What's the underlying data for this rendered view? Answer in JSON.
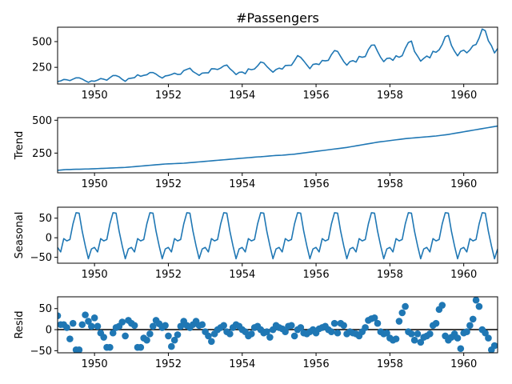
{
  "chart_data": {
    "type": "line",
    "title": "#Passengers",
    "colors": {
      "series": "#1f77b4",
      "axis": "#000000",
      "zero_line": "#000000"
    },
    "x_range": [
      1949.0,
      1960.917
    ],
    "x_ticks": [
      1950,
      1952,
      1954,
      1956,
      1958,
      1960
    ],
    "x_tick_labels": [
      "1950",
      "1952",
      "1954",
      "1956",
      "1958",
      "1960"
    ],
    "panels": [
      {
        "id": "observed",
        "ylabel": "",
        "kind": "line",
        "ylim": [
          88,
          640
        ],
        "yticks": [
          250,
          500
        ],
        "ytick_labels": [
          "250",
          "500"
        ],
        "start_year": 1949,
        "freq": 12,
        "values": [
          112,
          118,
          132,
          129,
          121,
          135,
          148,
          148,
          136,
          119,
          104,
          118,
          115,
          126,
          141,
          135,
          125,
          149,
          170,
          170,
          158,
          133,
          114,
          140,
          145,
          150,
          178,
          163,
          172,
          178,
          199,
          199,
          184,
          162,
          146,
          166,
          171,
          180,
          193,
          181,
          183,
          218,
          230,
          242,
          209,
          191,
          172,
          194,
          196,
          196,
          236,
          235,
          229,
          243,
          264,
          272,
          237,
          211,
          180,
          201,
          204,
          188,
          235,
          227,
          234,
          264,
          302,
          293,
          259,
          229,
          203,
          229,
          242,
          233,
          267,
          269,
          270,
          315,
          364,
          347,
          312,
          274,
          237,
          278,
          284,
          277,
          317,
          313,
          318,
          374,
          413,
          405,
          355,
          306,
          271,
          306,
          315,
          301,
          356,
          348,
          355,
          422,
          465,
          467,
          404,
          347,
          305,
          336,
          340,
          318,
          362,
          348,
          363,
          435,
          491,
          505,
          404,
          359,
          310,
          337,
          360,
          342,
          406,
          396,
          420,
          472,
          548,
          559,
          463,
          407,
          362,
          405,
          417,
          391,
          419,
          461,
          472,
          535,
          622,
          606,
          508,
          461,
          390,
          432
        ]
      },
      {
        "id": "trend",
        "ylabel": "Trend",
        "kind": "line",
        "ylim": [
          100,
          520
        ],
        "yticks": [
          250,
          500
        ],
        "ytick_labels": [
          "250",
          "500"
        ],
        "start_year": 1949,
        "freq": 12,
        "values": [
          119,
          121,
          123,
          125,
          125,
          126,
          127,
          127,
          128,
          129,
          129,
          130,
          131,
          132,
          133,
          134,
          135,
          136,
          137,
          138,
          139,
          140,
          141,
          143,
          145,
          147,
          149,
          151,
          153,
          155,
          157,
          159,
          161,
          163,
          165,
          167,
          168,
          169,
          170,
          171,
          172,
          173,
          175,
          177,
          179,
          181,
          183,
          185,
          187,
          189,
          191,
          193,
          195,
          197,
          199,
          201,
          203,
          205,
          207,
          209,
          211,
          213,
          215,
          217,
          219,
          221,
          222,
          224,
          226,
          228,
          230,
          232,
          233,
          234,
          236,
          238,
          240,
          242,
          245,
          248,
          251,
          254,
          257,
          260,
          263,
          266,
          269,
          272,
          275,
          278,
          281,
          284,
          287,
          290,
          293,
          297,
          301,
          305,
          309,
          313,
          317,
          321,
          325,
          329,
          333,
          336,
          339,
          342,
          345,
          348,
          351,
          354,
          357,
          360,
          362,
          364,
          366,
          368,
          370,
          372,
          374,
          376,
          378,
          380,
          383,
          386,
          389,
          392,
          396,
          400,
          404,
          408,
          412,
          416,
          420,
          424,
          428,
          432,
          436,
          440,
          444,
          448,
          452,
          456
        ]
      },
      {
        "id": "seasonal",
        "ylabel": "Seasonal",
        "kind": "line",
        "ylim": [
          -65,
          78
        ],
        "yticks": [
          -50,
          0,
          50
        ],
        "ytick_labels": [
          "−50",
          "0",
          "50"
        ],
        "start_year": 1949,
        "freq": 12,
        "cycle": [
          -24.7,
          -36.2,
          -2.2,
          -8.0,
          -4.5,
          35.4,
          63.8,
          62.8,
          16.5,
          -20.6,
          -53.6,
          -28.6
        ],
        "n": 144
      },
      {
        "id": "resid",
        "ylabel": "Resid",
        "kind": "scatter",
        "zero_line": true,
        "ylim": [
          -55,
          78
        ],
        "yticks": [
          -50,
          0,
          50
        ],
        "ytick_labels": [
          "−50",
          "0",
          "50"
        ],
        "start_year": 1949,
        "freq": 12,
        "values": [
          33,
          12,
          12,
          5,
          -22,
          15,
          -48,
          -48,
          12,
          35,
          20,
          8,
          28,
          8,
          -8,
          -18,
          -42,
          -42,
          -8,
          5,
          8,
          18,
          -15,
          22,
          15,
          10,
          -42,
          -42,
          -20,
          -25,
          -10,
          8,
          22,
          14,
          5,
          10,
          -15,
          -40,
          -25,
          -12,
          8,
          20,
          10,
          5,
          12,
          20,
          10,
          12,
          -5,
          -15,
          -28,
          -10,
          0,
          5,
          10,
          -5,
          -10,
          5,
          12,
          8,
          0,
          -5,
          -15,
          -10,
          5,
          8,
          0,
          -8,
          -5,
          -18,
          0,
          10,
          5,
          2,
          -5,
          8,
          10,
          -15,
          0,
          5,
          -8,
          -10,
          -5,
          0,
          -8,
          2,
          5,
          8,
          0,
          -5,
          15,
          -8,
          15,
          10,
          -10,
          -5,
          -8,
          -10,
          -15,
          -5,
          5,
          22,
          26,
          28,
          15,
          -5,
          -10,
          -8,
          -20,
          -25,
          -22,
          20,
          40,
          55,
          -5,
          -10,
          -25,
          -10,
          -30,
          -18,
          -15,
          -10,
          10,
          15,
          48,
          58,
          -15,
          -25,
          -18,
          -10,
          -20,
          -45,
          -8,
          -5,
          10,
          25,
          70,
          55,
          0,
          -8,
          -20,
          -48,
          -38
        ]
      }
    ]
  }
}
